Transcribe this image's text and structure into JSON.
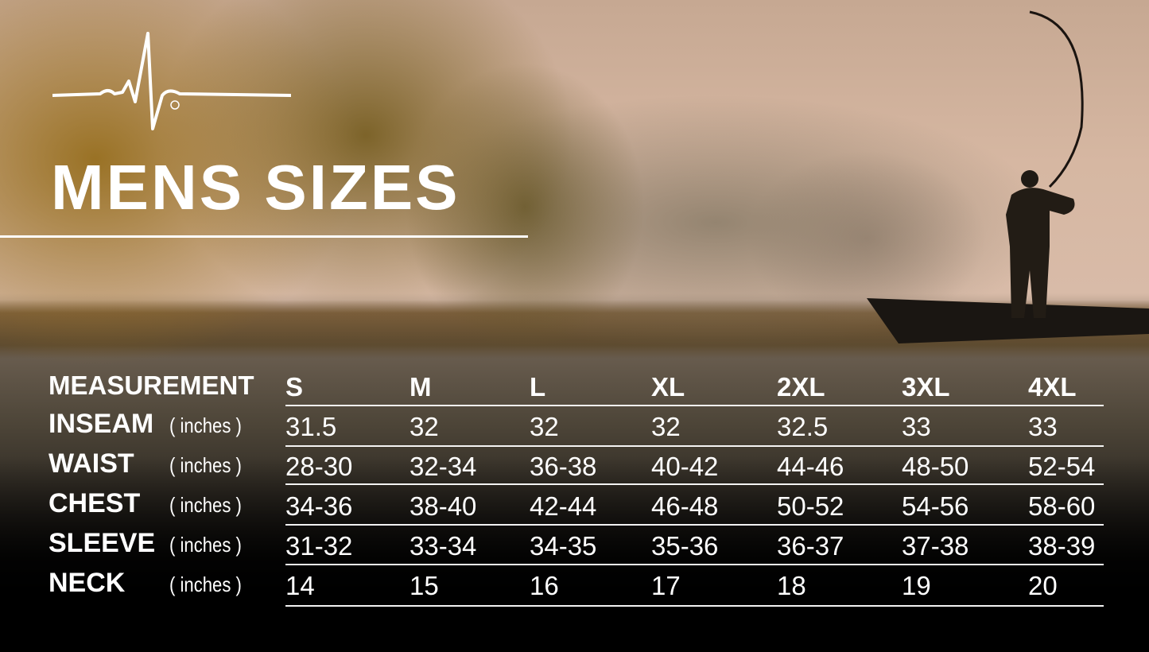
{
  "title": "MENS SIZES",
  "logo": {
    "icon": "heartbeat-pulse-icon",
    "mark": "®"
  },
  "table": {
    "header_label": "MEASUREMENT",
    "sizes": [
      "S",
      "M",
      "L",
      "XL",
      "2XL",
      "3XL",
      "4XL"
    ],
    "rows": [
      {
        "label": "INSEAM",
        "unit": "( inches )",
        "values": [
          "31.5",
          "32",
          "32",
          "32",
          "32.5",
          "33",
          "33"
        ]
      },
      {
        "label": "WAIST",
        "unit": "( inches )",
        "values": [
          "28-30",
          "32-34",
          "36-38",
          "40-42",
          "44-46",
          "48-50",
          "52-54"
        ]
      },
      {
        "label": "CHEST",
        "unit": "( inches )",
        "values": [
          "34-36",
          "38-40",
          "42-44",
          "46-48",
          "50-52",
          "54-56",
          "58-60"
        ]
      },
      {
        "label": "SLEEVE",
        "unit": "( inches )",
        "values": [
          "31-32",
          "33-34",
          "34-35",
          "35-36",
          "36-37",
          "37-38",
          "38-39"
        ]
      },
      {
        "label": "NECK",
        "unit": "( inches )",
        "values": [
          "14",
          "15",
          "16",
          "17",
          "18",
          "19",
          "20"
        ]
      }
    ]
  }
}
